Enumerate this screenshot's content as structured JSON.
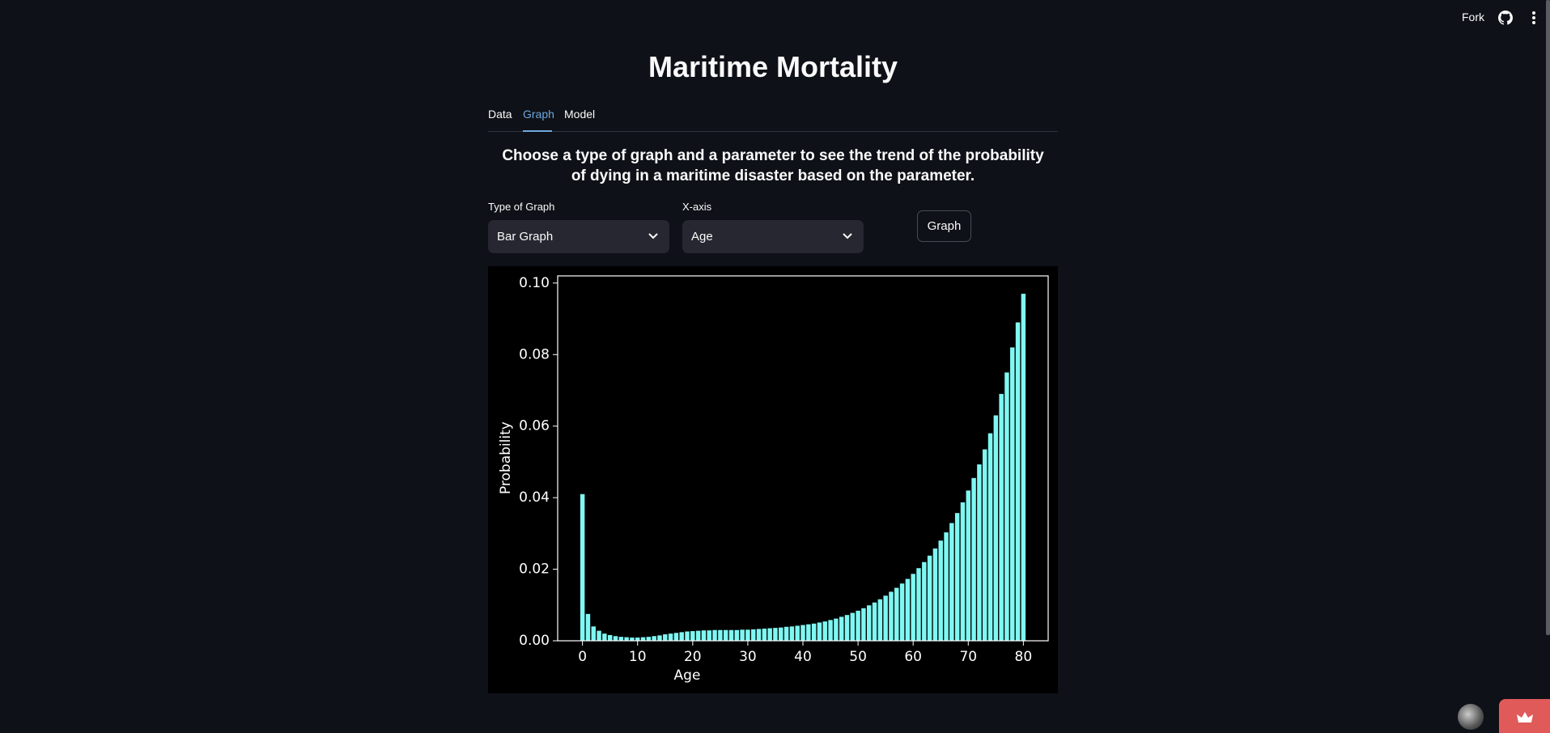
{
  "header": {
    "fork": "Fork"
  },
  "title": "Maritime Mortality",
  "tabs": [
    "Data",
    "Graph",
    "Model"
  ],
  "description": "Choose a type of graph and a parameter to see the trend of the probability of dying in a maritime disaster based on the parameter.",
  "controls": {
    "type_label": "Type of Graph",
    "type_value": "Bar Graph",
    "x_label": "X-axis",
    "x_value": "Age",
    "button": "Graph"
  },
  "chart_data": {
    "type": "bar",
    "xlabel": "Age",
    "ylabel": "Probability",
    "color": "#7ff7f2",
    "x": [
      0,
      1,
      2,
      3,
      4,
      5,
      6,
      7,
      8,
      9,
      10,
      11,
      12,
      13,
      14,
      15,
      16,
      17,
      18,
      19,
      20,
      21,
      22,
      23,
      24,
      25,
      26,
      27,
      28,
      29,
      30,
      31,
      32,
      33,
      34,
      35,
      36,
      37,
      38,
      39,
      40,
      41,
      42,
      43,
      44,
      45,
      46,
      47,
      48,
      49,
      50,
      51,
      52,
      53,
      54,
      55,
      56,
      57,
      58,
      59,
      60,
      61,
      62,
      63,
      64,
      65,
      66,
      67,
      68,
      69,
      70,
      71,
      72,
      73,
      74,
      75,
      76,
      77,
      78,
      79,
      80
    ],
    "values": [
      0.041,
      0.0075,
      0.004,
      0.0028,
      0.002,
      0.0016,
      0.0013,
      0.0011,
      0.001,
      0.0009,
      0.0009,
      0.001,
      0.0011,
      0.0013,
      0.0015,
      0.0018,
      0.002,
      0.0022,
      0.0024,
      0.0026,
      0.0027,
      0.0028,
      0.0029,
      0.0029,
      0.003,
      0.003,
      0.003,
      0.003,
      0.003,
      0.0031,
      0.0031,
      0.0032,
      0.0033,
      0.0034,
      0.0035,
      0.0036,
      0.0037,
      0.0039,
      0.004,
      0.0042,
      0.0044,
      0.0046,
      0.0048,
      0.0051,
      0.0054,
      0.0058,
      0.0062,
      0.0067,
      0.0072,
      0.0078,
      0.0084,
      0.0091,
      0.0099,
      0.0107,
      0.0116,
      0.0126,
      0.0137,
      0.0148,
      0.016,
      0.0173,
      0.0187,
      0.0203,
      0.022,
      0.0238,
      0.0258,
      0.028,
      0.0303,
      0.0329,
      0.0357,
      0.0387,
      0.042,
      0.0455,
      0.0493,
      0.0535,
      0.058,
      0.063,
      0.069,
      0.075,
      0.082,
      0.089,
      0.097
    ],
    "xlim": [
      -4.5,
      84.5
    ],
    "xticks": [
      0,
      10,
      20,
      30,
      40,
      50,
      60,
      70,
      80
    ],
    "ylim": [
      0,
      0.102
    ],
    "yticks": [
      {
        "value": 0,
        "label": "0.00"
      },
      {
        "value": 0.02,
        "label": "0.02"
      },
      {
        "value": 0.04,
        "label": "0.04"
      },
      {
        "value": 0.06,
        "label": "0.06"
      },
      {
        "value": 0.08,
        "label": "0.08"
      },
      {
        "value": 0.1,
        "label": "0.10"
      }
    ]
  }
}
